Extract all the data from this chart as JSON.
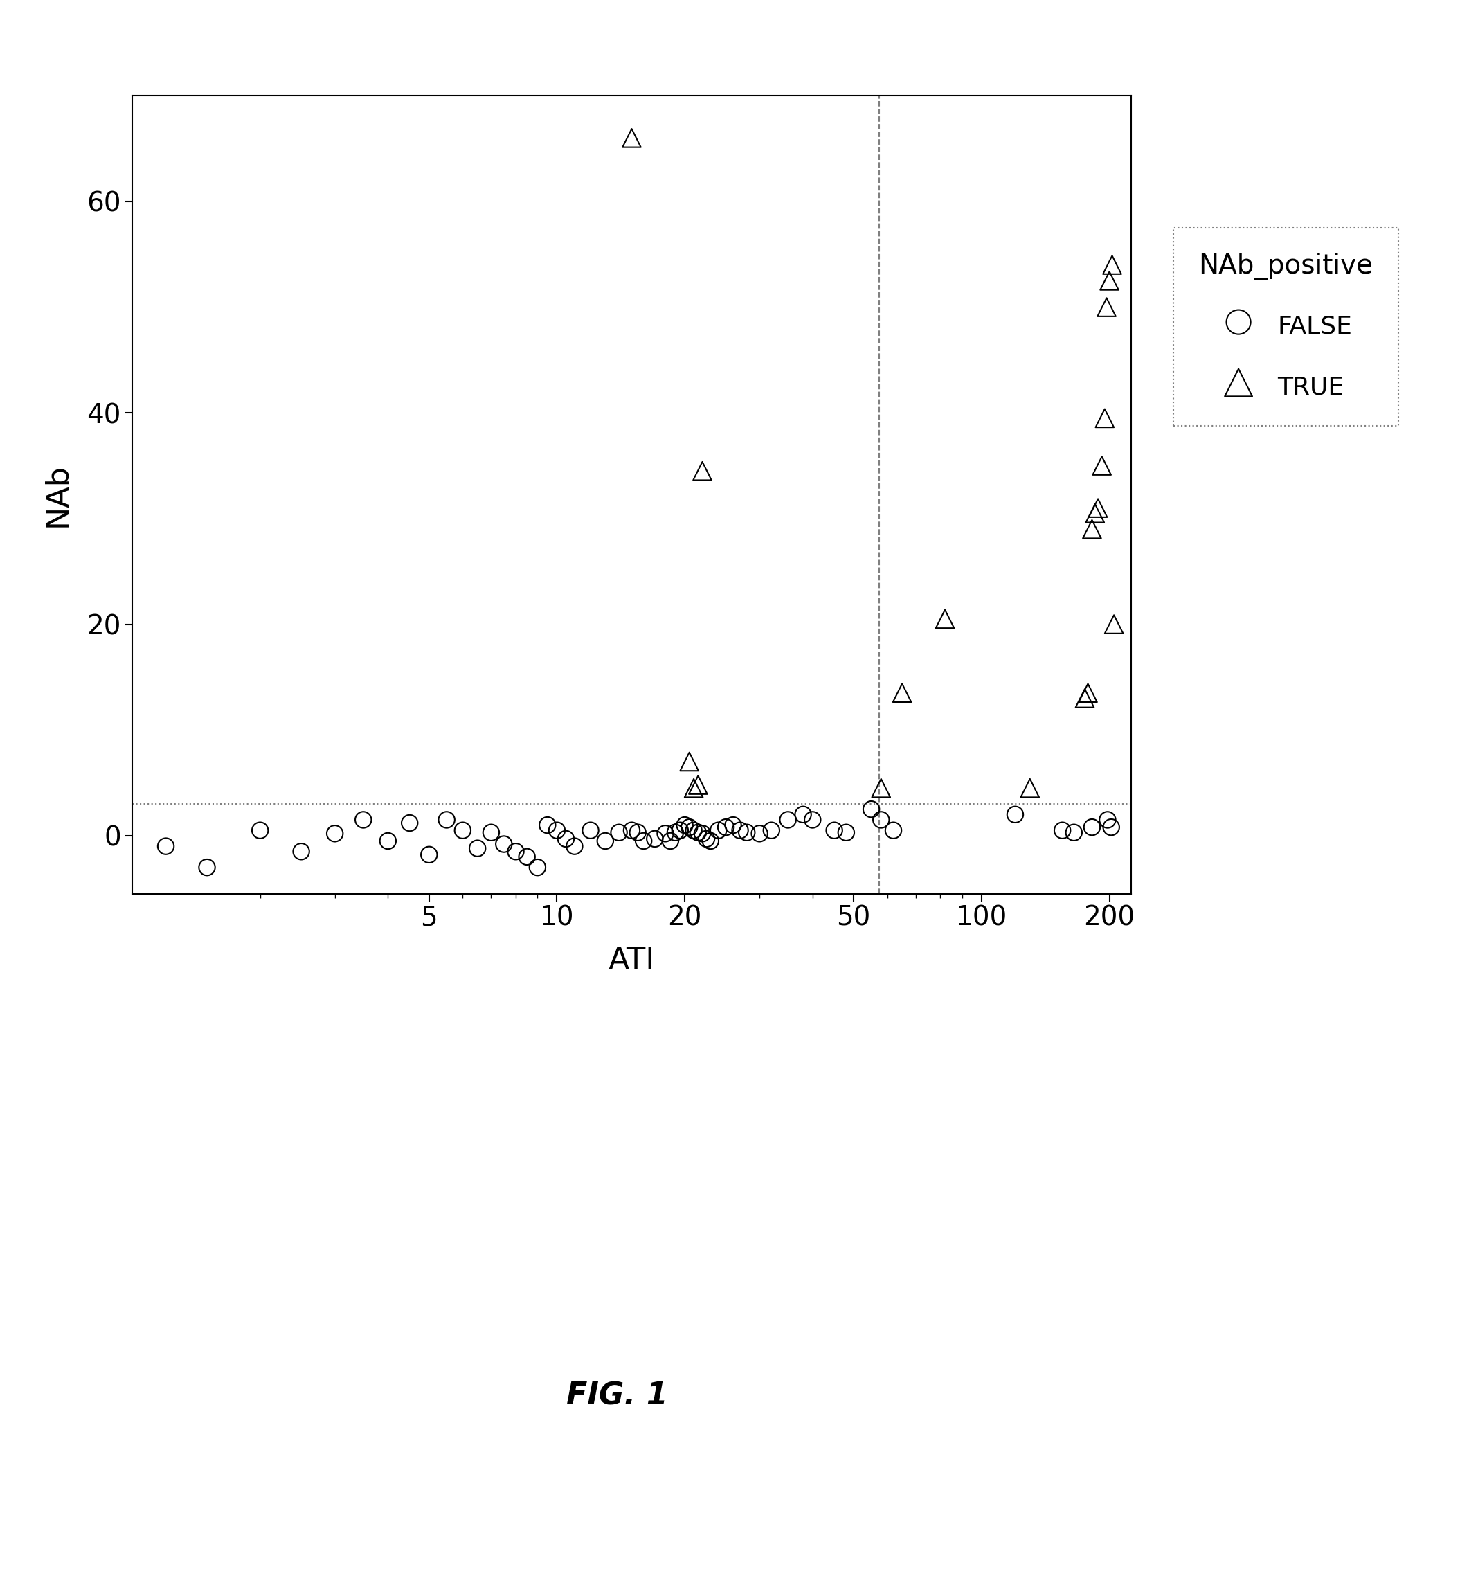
{
  "false_x": [
    1.2,
    1.5,
    2.0,
    2.5,
    3.0,
    3.5,
    4.0,
    4.5,
    5.0,
    5.5,
    6.0,
    6.5,
    7.0,
    7.5,
    8.0,
    8.5,
    9.0,
    9.5,
    10.0,
    10.5,
    11.0,
    12.0,
    13.0,
    14.0,
    15.0,
    15.5,
    16.0,
    17.0,
    18.0,
    18.5,
    19.0,
    19.5,
    20.0,
    20.5,
    21.0,
    21.5,
    22.0,
    22.5,
    23.0,
    24.0,
    25.0,
    26.0,
    27.0,
    28.0,
    30.0,
    32.0,
    35.0,
    38.0,
    40.0,
    45.0,
    48.0,
    55.0,
    58.0,
    62.0,
    120.0,
    155.0,
    165.0,
    182.0,
    198.0,
    202.0
  ],
  "false_y": [
    -1.0,
    -3.0,
    0.5,
    -1.5,
    0.2,
    1.5,
    -0.5,
    1.2,
    -1.8,
    1.5,
    0.5,
    -1.2,
    0.3,
    -0.8,
    -1.5,
    -2.0,
    -3.0,
    1.0,
    0.5,
    -0.3,
    -1.0,
    0.5,
    -0.5,
    0.3,
    0.5,
    0.3,
    -0.5,
    -0.3,
    0.2,
    -0.5,
    0.3,
    0.5,
    1.0,
    0.8,
    0.5,
    0.3,
    0.2,
    -0.3,
    -0.5,
    0.5,
    0.8,
    1.0,
    0.5,
    0.3,
    0.2,
    0.5,
    1.5,
    2.0,
    1.5,
    0.5,
    0.3,
    2.5,
    1.5,
    0.5,
    2.0,
    0.5,
    0.3,
    0.8,
    1.5,
    0.8
  ],
  "true_x": [
    15.0,
    20.5,
    21.0,
    21.5,
    22.0,
    58.0,
    65.0,
    82.0,
    130.0,
    175.0,
    178.0,
    182.0,
    185.0,
    188.0,
    192.0,
    195.0,
    197.0,
    200.0,
    203.0,
    205.0
  ],
  "true_y": [
    66.0,
    7.0,
    4.5,
    4.8,
    34.5,
    4.5,
    13.5,
    20.5,
    4.5,
    13.0,
    13.5,
    29.0,
    30.5,
    31.0,
    35.0,
    39.5,
    50.0,
    52.5,
    54.0,
    20.0
  ],
  "hline_y": 3.0,
  "vline_x": 57.5,
  "xlabel": "ATI",
  "ylabel": "NAb",
  "legend_title": "NAb_positive",
  "legend_false": "FALSE",
  "legend_true": "TRUE",
  "fig_label": "FIG. 1",
  "xlim": [
    1.0,
    225.0
  ],
  "ylim": [
    -5.5,
    70.0
  ],
  "yticks": [
    0,
    20,
    40,
    60
  ],
  "xticks": [
    5,
    10,
    20,
    50,
    100,
    200
  ],
  "marker_size": 9,
  "background_color": "#ffffff"
}
